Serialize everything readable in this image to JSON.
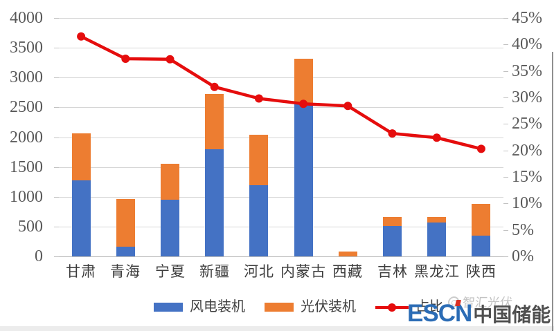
{
  "chart_data": {
    "type": "bar",
    "subtype": "stacked-bars-with-line",
    "categories": [
      "甘肃",
      "青海",
      "宁夏",
      "新疆",
      "河北",
      "内蒙古",
      "西藏",
      "吉林",
      "黑龙江",
      "陕西"
    ],
    "series": [
      {
        "name": "风电装机",
        "type": "bar",
        "color": "#4472c4",
        "axis": "left",
        "values": [
          1280,
          160,
          950,
          1800,
          1190,
          2580,
          0,
          510,
          570,
          350
        ]
      },
      {
        "name": "光伏装机",
        "type": "bar",
        "color": "#ed7d31",
        "axis": "left",
        "values": [
          790,
          800,
          600,
          920,
          850,
          740,
          85,
          155,
          95,
          530
        ]
      },
      {
        "name": "占比",
        "type": "line",
        "color": "#e50d0d",
        "axis": "right",
        "values": [
          41.5,
          37.3,
          37.2,
          32.0,
          29.8,
          28.8,
          28.4,
          23.2,
          22.4,
          20.3
        ]
      }
    ],
    "left_axis": {
      "min": 0,
      "max": 4000,
      "step": 500,
      "labels": [
        "4000",
        "3500",
        "3000",
        "2500",
        "2000",
        "1500",
        "1000",
        "500",
        "0"
      ]
    },
    "right_axis": {
      "min": 0,
      "max": 45,
      "step": 5,
      "labels": [
        "45%",
        "40%",
        "35%",
        "30%",
        "25%",
        "20%",
        "15%",
        "10%",
        "5%",
        "0%"
      ]
    },
    "title": "",
    "xlabel": "",
    "ylabel": "",
    "grid": true,
    "legend_position": "bottom"
  },
  "branding": {
    "watermark_text": "智汇光伏",
    "logo_escn": "ESCN",
    "logo_cn": "中国储能网"
  },
  "colors": {
    "wind_bar": "#4472c4",
    "solar_bar": "#ed7d31",
    "ratio_line": "#e50d0d",
    "gridline": "#d6d6d6",
    "axis_text": "#595959",
    "logo_blue": "#2b6cb5",
    "logo_dark": "#4f4f4f"
  }
}
